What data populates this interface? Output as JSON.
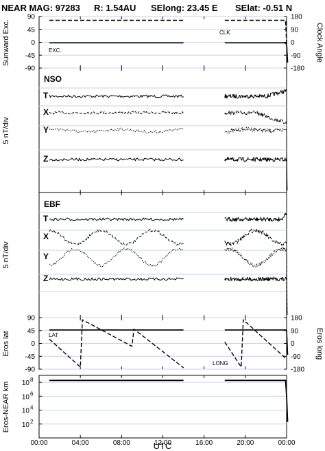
{
  "header": {
    "left": "NEAR MAG: 97283",
    "r": "R: 1.54AU",
    "selong": "SElong:   23.45 E",
    "selat": "SElat:  -0.51 N"
  },
  "chart_data": [
    {
      "type": "line",
      "panel": "exc_clock",
      "ylabel": "Sunward Exc.",
      "ylabel_right": "Clock Angle",
      "ylim": [
        -90,
        90
      ],
      "yticks": [
        "90",
        "45",
        "0",
        "-45",
        "-90"
      ],
      "ylim_right": [
        -180,
        180
      ],
      "yticks_right": [
        "180",
        "90",
        "0",
        "-90",
        "-180"
      ],
      "annotations": [
        "EXC.",
        "CLK"
      ],
      "series": [
        {
          "label": "CLK",
          "dash": true,
          "segments": [
            [
              [
                1.0,
                153
              ],
              [
                14.0,
                153
              ]
            ],
            [
              [
                18.0,
                153
              ],
              [
                23.9,
                153
              ],
              [
                24.0,
                0
              ],
              [
                24.1,
                -150
              ]
            ]
          ]
        },
        {
          "label": "EXC.",
          "dash": false,
          "segments": [
            [
              [
                1.0,
                -2
              ],
              [
                14.0,
                -2
              ]
            ],
            [
              [
                18.0,
                -2
              ],
              [
                23.9,
                -2
              ],
              [
                24.0,
                -10
              ],
              [
                24.1,
                -70
              ]
            ]
          ]
        }
      ]
    },
    {
      "type": "line",
      "panel": "nso",
      "title": "NSO",
      "ylabel": "5 nT/div",
      "series_labels": [
        "T",
        "X",
        "Y",
        "Z"
      ]
    },
    {
      "type": "line",
      "panel": "ebf",
      "title": "EBF",
      "ylabel": "5 nT/div",
      "series_labels": [
        "T",
        "X",
        "Y",
        "Z"
      ]
    },
    {
      "type": "line",
      "panel": "lat_long",
      "ylabel": "Eros lat",
      "ylabel_right": "Eros long",
      "ylim": [
        -90,
        90
      ],
      "yticks": [
        "90",
        "45",
        "0",
        "-45",
        "-90"
      ],
      "ylim_right": [
        -180,
        180
      ],
      "yticks_right": [
        "180",
        "90",
        "0",
        "-90",
        "-180"
      ],
      "annotations": [
        "LAT",
        "LONG"
      ],
      "lat": {
        "segments": [
          [
            [
              1.0,
              47
            ],
            [
              14.0,
              47
            ]
          ],
          [
            [
              18.0,
              47
            ],
            [
              24.0,
              47
            ],
            [
              24.1,
              -40
            ]
          ]
        ]
      },
      "long": {
        "segments": [
          [
            [
              1.0,
              30
            ],
            [
              4.0,
              -165
            ],
            [
              4.2,
              165
            ],
            [
              9.0,
              -20
            ],
            [
              9.2,
              100
            ],
            [
              14.0,
              -170
            ]
          ],
          [
            [
              18.0,
              10
            ],
            [
              19.6,
              -165
            ],
            [
              19.8,
              165
            ],
            [
              24.0,
              -110
            ]
          ]
        ]
      }
    },
    {
      "type": "line",
      "panel": "distance",
      "ylabel": "Eros-NEAR km",
      "yscale": "log",
      "ylim": [
        1,
        1000000000.0
      ],
      "yticks": [
        {
          "base": "10",
          "exp": "8"
        },
        {
          "base": "10",
          "exp": "6"
        },
        {
          "base": "10",
          "exp": "4"
        },
        {
          "base": "10",
          "exp": "2"
        }
      ],
      "segments": [
        [
          [
            1.0,
            190000000.0
          ],
          [
            14.0,
            190000000.0
          ]
        ],
        [
          [
            18.0,
            190000000.0
          ],
          [
            23.9,
            190000000.0
          ],
          [
            24.0,
            1000000.0
          ],
          [
            24.1,
            200
          ]
        ]
      ]
    }
  ],
  "xaxis": {
    "label": "UTC",
    "ticks": [
      "00:00",
      "04:00",
      "08:00",
      "12:00",
      "16:00",
      "20:00",
      "00:00"
    ],
    "range_hours": [
      0,
      24
    ]
  }
}
